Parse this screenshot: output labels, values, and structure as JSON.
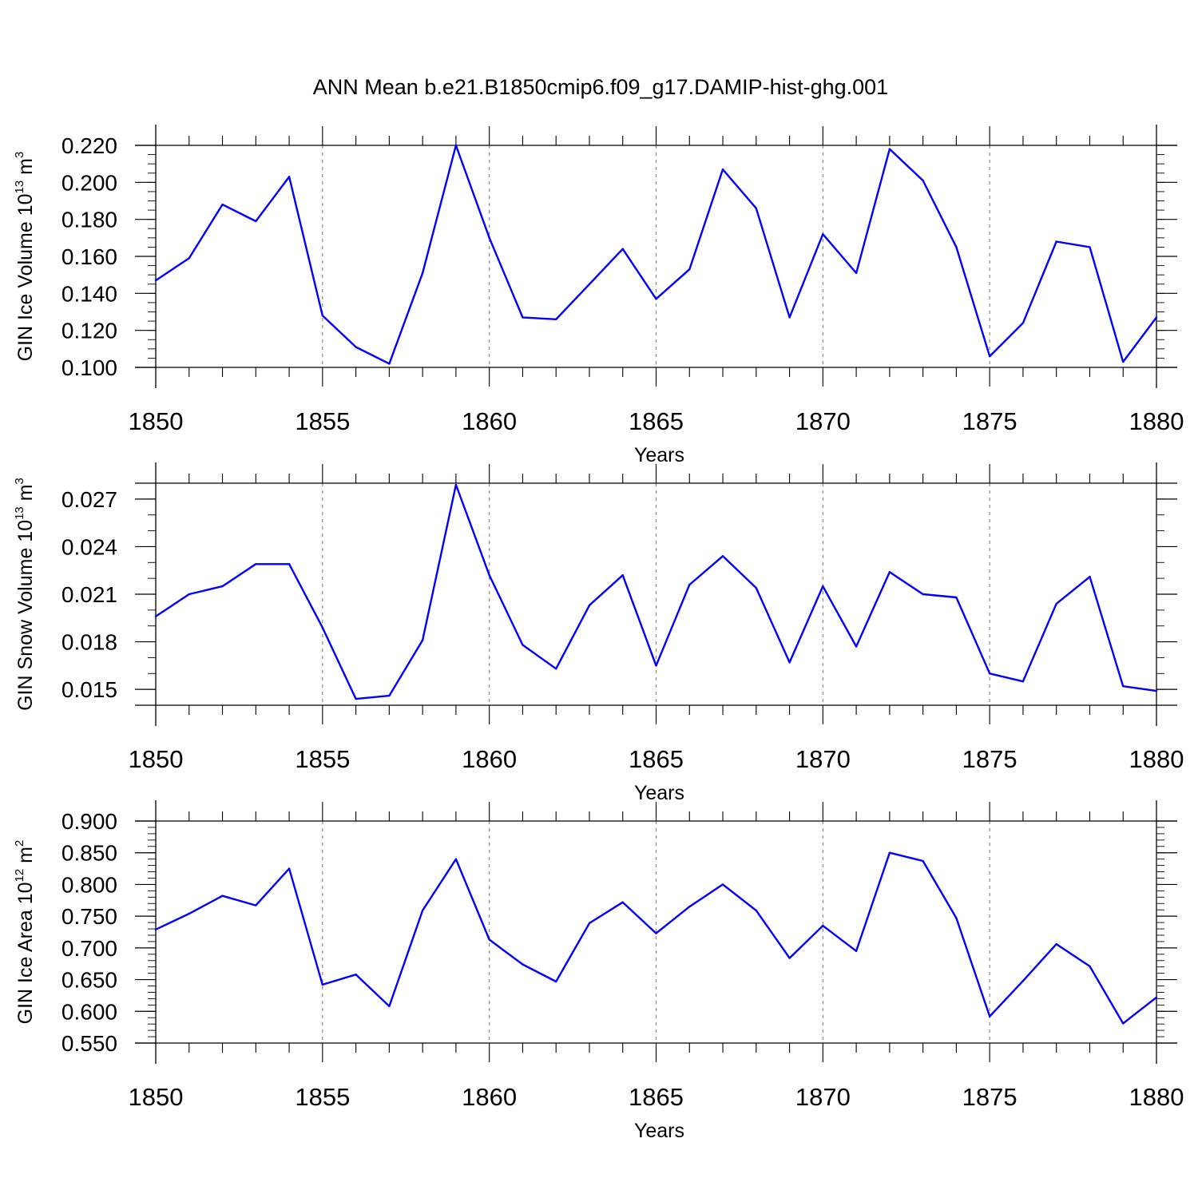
{
  "title": "ANN Mean b.e21.B1850cmip6.f09_g17.DAMIP-hist-ghg.001",
  "colors": {
    "line": "#0000ff",
    "axis": "#000000",
    "gridline": "#888888"
  },
  "chart_data": [
    {
      "type": "line",
      "xlabel": "Years",
      "ylabel": {
        "prefix": "GIN Ice Volume 10",
        "exponent": "13",
        "unit": " m",
        "unit_exponent": "3"
      },
      "xlim": [
        1850,
        1880
      ],
      "ylim": [
        0.1,
        0.22
      ],
      "x_ticks": [
        1850,
        1855,
        1860,
        1865,
        1870,
        1875,
        1880
      ],
      "x_tick_labels": [
        "1850",
        "1855",
        "1860",
        "1865",
        "1870",
        "1875",
        "1880"
      ],
      "y_ticks": [
        0.1,
        0.12,
        0.14,
        0.16,
        0.18,
        0.2,
        0.22
      ],
      "y_tick_labels": [
        "0.100",
        "0.120",
        "0.140",
        "0.160",
        "0.180",
        "0.200",
        "0.220"
      ],
      "y_minor_step": 0.005,
      "vertical_gridlines": [
        1855,
        1860,
        1865,
        1870,
        1875
      ],
      "x": [
        1850,
        1851,
        1852,
        1853,
        1854,
        1855,
        1856,
        1857,
        1858,
        1859,
        1860,
        1861,
        1862,
        1863,
        1864,
        1865,
        1866,
        1867,
        1868,
        1869,
        1870,
        1871,
        1872,
        1873,
        1874,
        1875,
        1876,
        1877,
        1878,
        1879,
        1880
      ],
      "values": [
        0.147,
        0.159,
        0.188,
        0.179,
        0.203,
        0.128,
        0.111,
        0.102,
        0.151,
        0.22,
        0.17,
        0.127,
        0.126,
        0.145,
        0.164,
        0.137,
        0.153,
        0.207,
        0.186,
        0.127,
        0.172,
        0.151,
        0.218,
        0.201,
        0.165,
        0.106,
        0.124,
        0.168,
        0.165,
        0.103,
        0.127
      ]
    },
    {
      "type": "line",
      "xlabel": "Years",
      "ylabel": {
        "prefix": "GIN Snow Volume 10",
        "exponent": "13",
        "unit": " m",
        "unit_exponent": "3"
      },
      "xlim": [
        1850,
        1880
      ],
      "ylim": [
        0.014,
        0.028
      ],
      "x_ticks": [
        1850,
        1855,
        1860,
        1865,
        1870,
        1875,
        1880
      ],
      "x_tick_labels": [
        "1850",
        "1855",
        "1860",
        "1865",
        "1870",
        "1875",
        "1880"
      ],
      "y_ticks": [
        0.015,
        0.018,
        0.021,
        0.024,
        0.027
      ],
      "y_tick_labels": [
        "0.015",
        "0.018",
        "0.021",
        "0.024",
        "0.027"
      ],
      "y_minor_step": 0.001,
      "vertical_gridlines": [
        1855,
        1860,
        1865,
        1870,
        1875
      ],
      "x": [
        1850,
        1851,
        1852,
        1853,
        1854,
        1855,
        1856,
        1857,
        1858,
        1859,
        1860,
        1861,
        1862,
        1863,
        1864,
        1865,
        1866,
        1867,
        1868,
        1869,
        1870,
        1871,
        1872,
        1873,
        1874,
        1875,
        1876,
        1877,
        1878,
        1879,
        1880
      ],
      "values": [
        0.0196,
        0.021,
        0.0215,
        0.0229,
        0.0229,
        0.0189,
        0.0144,
        0.0146,
        0.0181,
        0.0279,
        0.0222,
        0.0178,
        0.0163,
        0.0203,
        0.0222,
        0.0165,
        0.0216,
        0.0234,
        0.0214,
        0.0167,
        0.0215,
        0.0177,
        0.0224,
        0.021,
        0.0208,
        0.016,
        0.0155,
        0.0204,
        0.0221,
        0.0152,
        0.0149
      ]
    },
    {
      "type": "line",
      "xlabel": "Years",
      "ylabel": {
        "prefix": "GIN Ice Area 10",
        "exponent": "12",
        "unit": " m",
        "unit_exponent": "2"
      },
      "xlim": [
        1850,
        1880
      ],
      "ylim": [
        0.55,
        0.9
      ],
      "x_ticks": [
        1850,
        1855,
        1860,
        1865,
        1870,
        1875,
        1880
      ],
      "x_tick_labels": [
        "1850",
        "1855",
        "1860",
        "1865",
        "1870",
        "1875",
        "1880"
      ],
      "y_ticks": [
        0.55,
        0.6,
        0.65,
        0.7,
        0.75,
        0.8,
        0.85,
        0.9
      ],
      "y_tick_labels": [
        "0.550",
        "0.600",
        "0.650",
        "0.700",
        "0.750",
        "0.800",
        "0.850",
        "0.900"
      ],
      "y_minor_step": 0.01,
      "vertical_gridlines": [
        1855,
        1860,
        1865,
        1870,
        1875
      ],
      "x": [
        1850,
        1851,
        1852,
        1853,
        1854,
        1855,
        1856,
        1857,
        1858,
        1859,
        1860,
        1861,
        1862,
        1863,
        1864,
        1865,
        1866,
        1867,
        1868,
        1869,
        1870,
        1871,
        1872,
        1873,
        1874,
        1875,
        1876,
        1877,
        1878,
        1879,
        1880
      ],
      "values": [
        0.729,
        0.754,
        0.782,
        0.767,
        0.825,
        0.642,
        0.658,
        0.608,
        0.759,
        0.84,
        0.713,
        0.674,
        0.647,
        0.739,
        0.772,
        0.723,
        0.765,
        0.8,
        0.759,
        0.684,
        0.735,
        0.695,
        0.85,
        0.837,
        0.747,
        0.592,
        0.648,
        0.706,
        0.671,
        0.581,
        0.622
      ]
    }
  ]
}
